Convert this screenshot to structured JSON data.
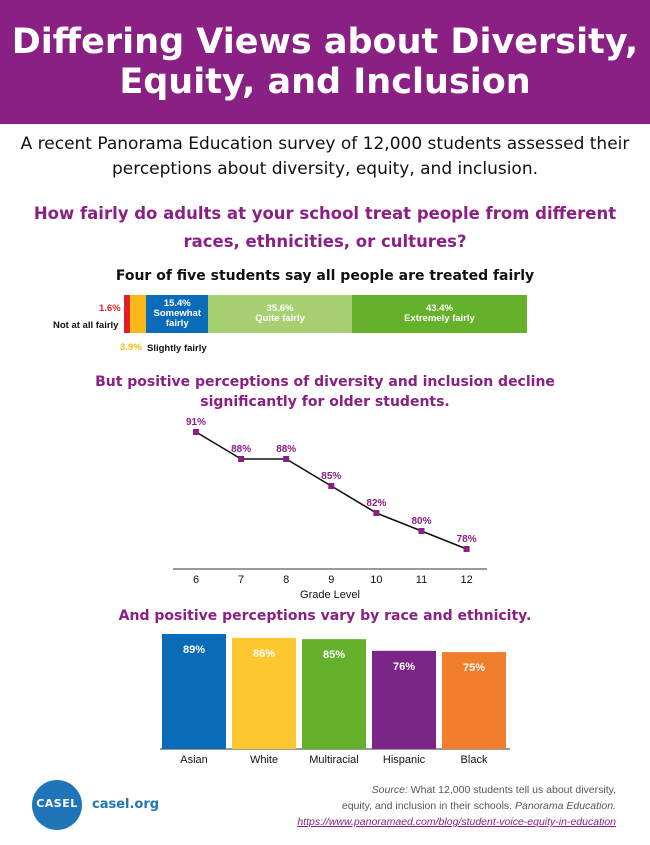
{
  "header": {
    "title": "Differing Views about Diversity,\nEquity, and Inclusion"
  },
  "intro": "A recent Panorama Education survey of 12,000 students assessed their\nperceptions about diversity, equity, and inclusion.",
  "question": "How fairly do adults at your school treat people from different\nraces, ethnicities, or cultures?",
  "colors": {
    "purple": "#8a1f84",
    "red": "#e41e26",
    "yellow": "#f9b91b",
    "blue": "#0a6cb8",
    "lightgreen": "#a6d072",
    "green": "#65b12c",
    "orange": "#f07e2c"
  },
  "chart_data": [
    {
      "type": "bar",
      "stacked": true,
      "orientation": "horizontal",
      "title": "Four of five students say all people are treated fairly",
      "categories": [
        "Not at all fairly",
        "Slightly fairly",
        "Somewhat fairly",
        "Quite fairly",
        "Extremely fairly"
      ],
      "values": [
        1.6,
        3.9,
        15.4,
        35.6,
        43.4
      ],
      "value_labels": [
        "1.6%",
        "3.9%",
        "15.4%",
        "35.6%",
        "43.4%"
      ],
      "colors": [
        "#e41e26",
        "#f9b91b",
        "#0a6cb8",
        "#a6d072",
        "#65b12c"
      ],
      "segment_texts": [
        {
          "pct": "15.4%",
          "line1": "Somewhat",
          "line2": "fairly"
        },
        {
          "pct": "35.6%",
          "line1": "Quite fairly",
          "line2": ""
        },
        {
          "pct": "43.4%",
          "line1": "Extremely fairly",
          "line2": ""
        }
      ]
    },
    {
      "type": "line",
      "title": "But positive perceptions of diversity and inclusion decline\nsignificantly for older students.",
      "x": [
        "6",
        "7",
        "8",
        "9",
        "10",
        "11",
        "12"
      ],
      "values": [
        91,
        88,
        88,
        85,
        82,
        80,
        78
      ],
      "value_labels": [
        "91%",
        "88%",
        "88%",
        "85%",
        "82%",
        "80%",
        "78%"
      ],
      "xlabel": "Grade Level",
      "ylim": [
        76,
        92
      ],
      "grid": false
    },
    {
      "type": "bar",
      "title": "And positive perceptions vary by race and ethnicity.",
      "categories": [
        "Asian",
        "White",
        "Multiracial",
        "Hispanic",
        "Black"
      ],
      "values": [
        89,
        86,
        85,
        76,
        75
      ],
      "value_labels": [
        "89%",
        "86%",
        "85%",
        "76%",
        "75%"
      ],
      "colors": [
        "#0a6cb8",
        "#fdc82f",
        "#65b12c",
        "#7b2587",
        "#f07e2c"
      ],
      "ylim": [
        0,
        89
      ],
      "grid": false
    }
  ],
  "footer": {
    "logo_text": "CASEL",
    "url": "casel.org",
    "source_label": "Source:",
    "source_text": " What 12,000 students tell us about diversity,",
    "source_line2": "equity, and inclusion in their schools. ",
    "source_pub": "Panorama Education.",
    "source_link": "https://www.panoramaed.com/blog/student-voice-equity-in-education"
  }
}
